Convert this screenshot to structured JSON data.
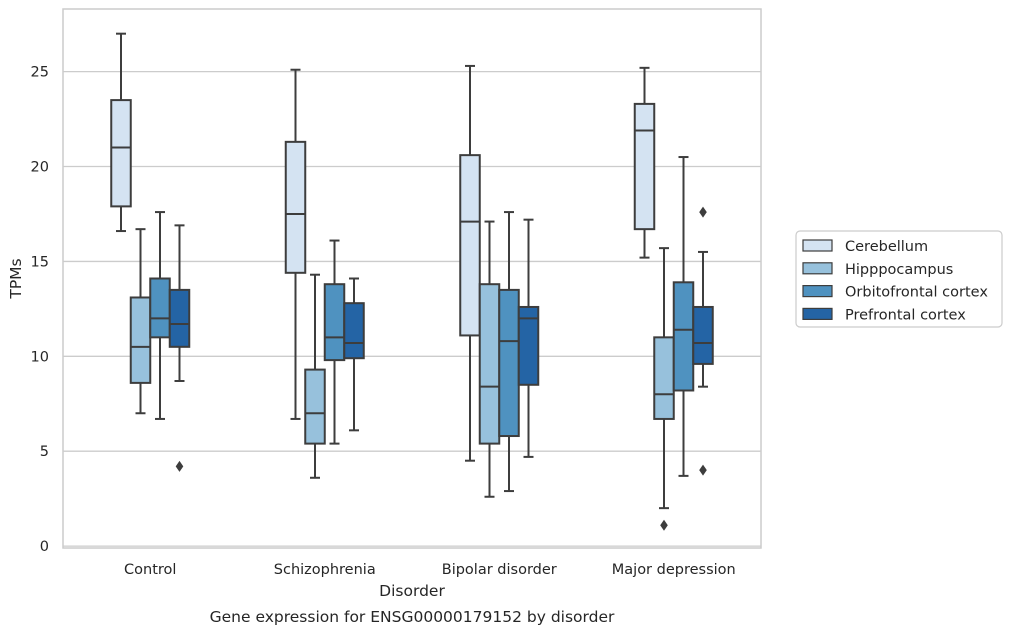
{
  "chart_data": {
    "type": "box",
    "title": "",
    "caption": "Gene expression for ENSG00000179152 by disorder",
    "xlabel": "Disorder",
    "ylabel": "TPMs",
    "ylim": [
      -0.1,
      28.3
    ],
    "yticks": [
      0,
      5,
      10,
      15,
      20,
      25
    ],
    "grid": "horizontal",
    "legend_position": "right-outside",
    "categories": [
      "Control",
      "Schizophrenia",
      "Bipolar disorder",
      "Major depression"
    ],
    "series": [
      {
        "name": "Cerebellum",
        "color": "#d4e3f2",
        "boxes": [
          {
            "whislo": 16.6,
            "q1": 17.9,
            "med": 21.0,
            "q3": 23.5,
            "whishi": 27.0,
            "fliers": []
          },
          {
            "whislo": 6.7,
            "q1": 14.4,
            "med": 17.5,
            "q3": 21.3,
            "whishi": 25.1,
            "fliers": []
          },
          {
            "whislo": 4.5,
            "q1": 11.1,
            "med": 17.1,
            "q3": 20.6,
            "whishi": 25.3,
            "fliers": []
          },
          {
            "whislo": 15.2,
            "q1": 16.7,
            "med": 21.9,
            "q3": 23.3,
            "whishi": 25.2,
            "fliers": []
          }
        ]
      },
      {
        "name": "Hipppocampus",
        "color": "#97c1dc",
        "boxes": [
          {
            "whislo": 7.0,
            "q1": 8.6,
            "med": 10.5,
            "q3": 13.1,
            "whishi": 16.7,
            "fliers": []
          },
          {
            "whislo": 3.6,
            "q1": 5.4,
            "med": 7.0,
            "q3": 9.3,
            "whishi": 14.3,
            "fliers": []
          },
          {
            "whislo": 2.6,
            "q1": 5.4,
            "med": 8.4,
            "q3": 13.8,
            "whishi": 17.1,
            "fliers": []
          },
          {
            "whislo": 2.0,
            "q1": 6.7,
            "med": 8.0,
            "q3": 11.0,
            "whishi": 15.7,
            "fliers": [
              1.1
            ]
          }
        ]
      },
      {
        "name": "Orbitofrontal cortex",
        "color": "#4f92c0",
        "boxes": [
          {
            "whislo": 6.7,
            "q1": 11.0,
            "med": 12.0,
            "q3": 14.1,
            "whishi": 17.6,
            "fliers": []
          },
          {
            "whislo": 5.4,
            "q1": 9.8,
            "med": 11.0,
            "q3": 13.8,
            "whishi": 16.1,
            "fliers": []
          },
          {
            "whislo": 2.9,
            "q1": 5.8,
            "med": 10.8,
            "q3": 13.5,
            "whishi": 17.6,
            "fliers": []
          },
          {
            "whislo": 3.7,
            "q1": 8.2,
            "med": 11.4,
            "q3": 13.9,
            "whishi": 20.5,
            "fliers": []
          }
        ]
      },
      {
        "name": "Prefrontal cortex",
        "color": "#2464a5",
        "boxes": [
          {
            "whislo": 8.7,
            "q1": 10.5,
            "med": 11.7,
            "q3": 13.5,
            "whishi": 16.9,
            "fliers": [
              4.2
            ]
          },
          {
            "whislo": 6.1,
            "q1": 9.9,
            "med": 10.7,
            "q3": 12.8,
            "whishi": 14.1,
            "fliers": []
          },
          {
            "whislo": 4.7,
            "q1": 8.5,
            "med": 12.0,
            "q3": 12.6,
            "whishi": 17.2,
            "fliers": []
          },
          {
            "whislo": 8.4,
            "q1": 9.6,
            "med": 10.7,
            "q3": 12.6,
            "whishi": 15.5,
            "fliers": [
              4.0,
              17.6
            ]
          }
        ]
      }
    ]
  }
}
